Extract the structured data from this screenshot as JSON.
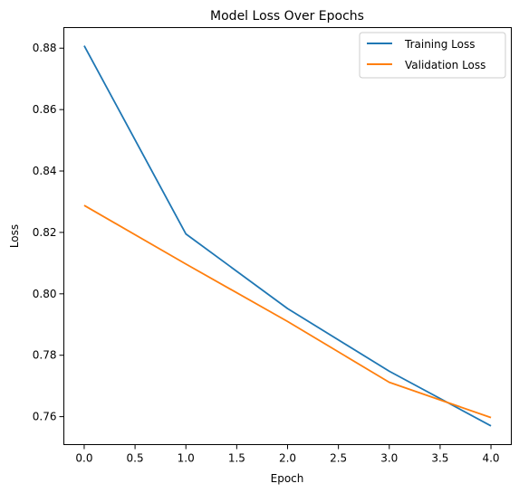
{
  "chart_data": {
    "type": "line",
    "title": "Model Loss Over Epochs",
    "xlabel": "Epoch",
    "ylabel": "Loss",
    "xlim": [
      -0.2,
      4.2
    ],
    "ylim": [
      0.7509,
      0.8867
    ],
    "x_ticks": [
      0.0,
      0.5,
      1.0,
      1.5,
      2.0,
      2.5,
      3.0,
      3.5,
      4.0
    ],
    "x_tick_labels": [
      "0.0",
      "0.5",
      "1.0",
      "1.5",
      "2.0",
      "2.5",
      "3.0",
      "3.5",
      "4.0"
    ],
    "y_ticks": [
      0.76,
      0.78,
      0.8,
      0.82,
      0.84,
      0.86,
      0.88
    ],
    "y_tick_labels": [
      "0.76",
      "0.78",
      "0.80",
      "0.82",
      "0.84",
      "0.86",
      "0.88"
    ],
    "x": [
      0,
      1,
      2,
      3,
      4
    ],
    "series": [
      {
        "name": "Training Loss",
        "color": "#1f77b4",
        "values": [
          0.8808,
          0.8195,
          0.7952,
          0.7748,
          0.757
        ]
      },
      {
        "name": "Validation Loss",
        "color": "#ff7f0e",
        "values": [
          0.8288,
          0.8097,
          0.791,
          0.7712,
          0.7597
        ]
      }
    ],
    "grid": false,
    "legend_position": "upper right"
  }
}
